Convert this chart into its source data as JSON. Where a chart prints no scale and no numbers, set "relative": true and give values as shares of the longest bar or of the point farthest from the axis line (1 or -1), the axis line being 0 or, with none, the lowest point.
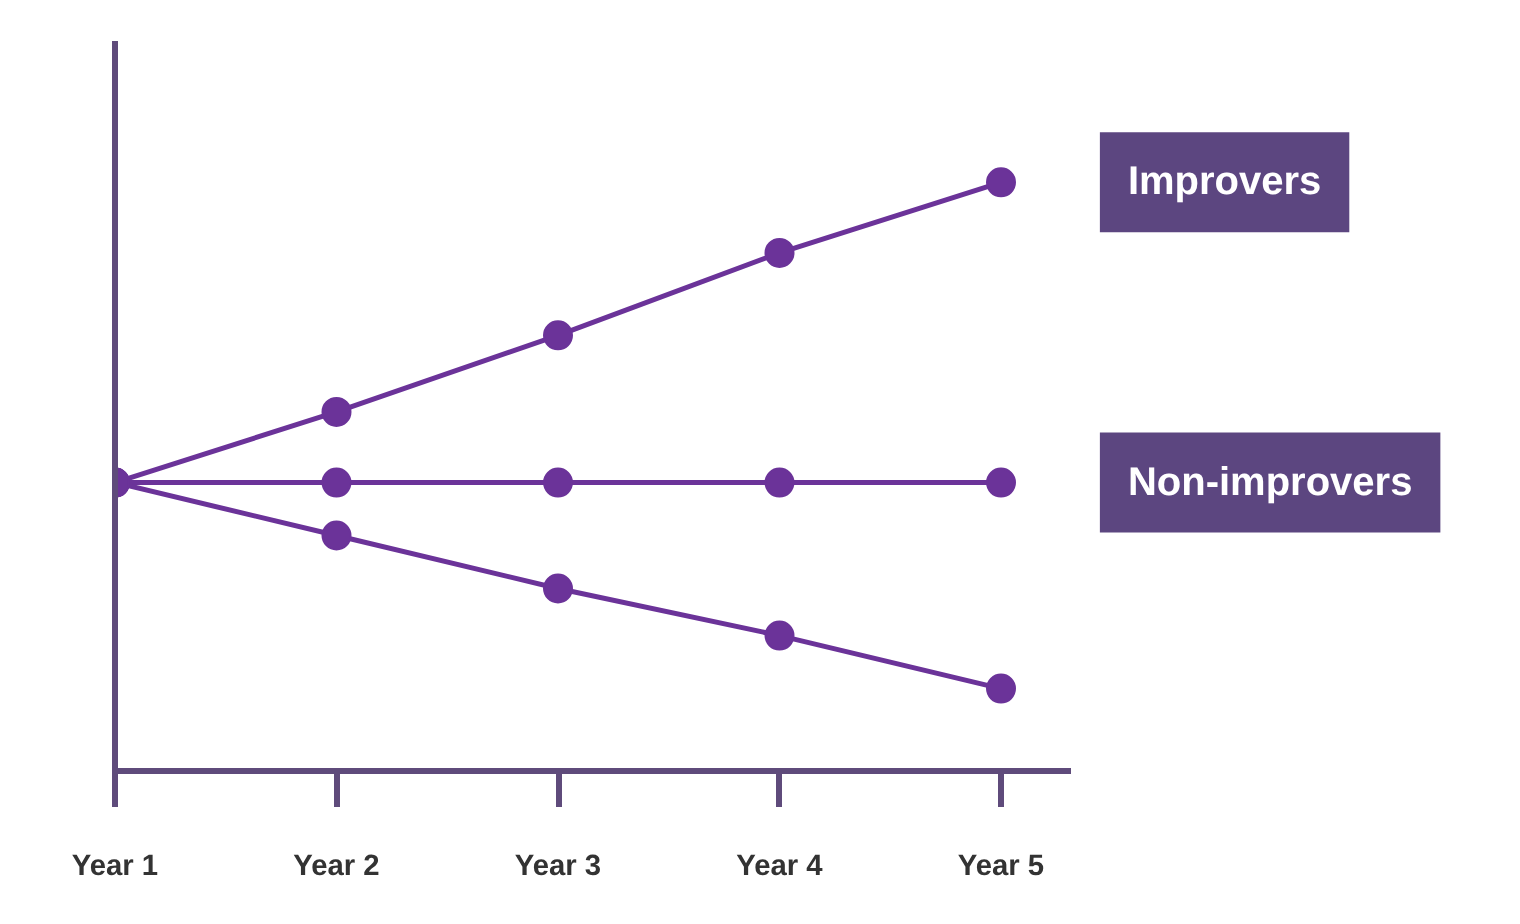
{
  "chart_data": {
    "type": "line",
    "relative": true,
    "marker": "circle",
    "grid": false,
    "categories": [
      "Year 1",
      "Year 2",
      "Year 3",
      "Year 4",
      "Year 5"
    ],
    "series": [
      {
        "name": "Improvers",
        "color": "#6b3399",
        "values": [
          0.49,
          0.61,
          0.74,
          0.88,
          1
        ]
      },
      {
        "name": "Non-improvers",
        "color": "#6b3399",
        "values": [
          0.49,
          0.49,
          0.49,
          0.49,
          0.49
        ]
      },
      {
        "color": "#6b3399",
        "values": [
          0.49,
          0.4,
          0.31,
          0.23,
          0.14
        ]
      }
    ]
  }
}
